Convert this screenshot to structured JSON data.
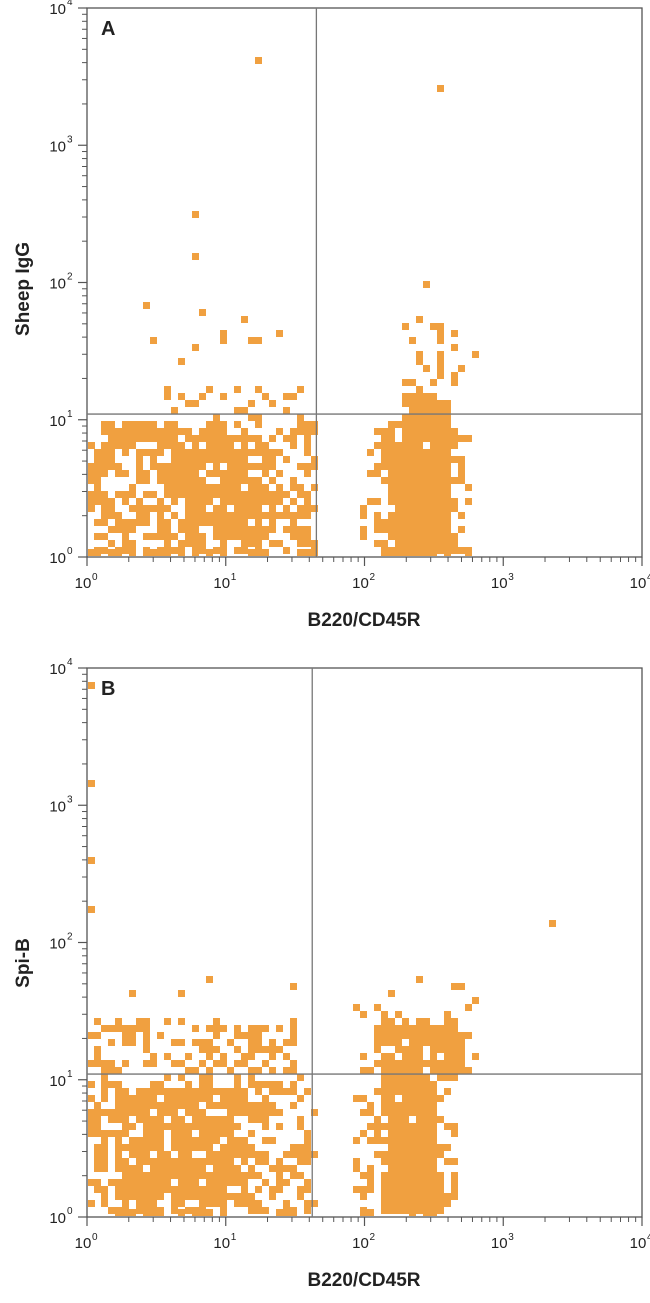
{
  "colors": {
    "dot": "#F0A040",
    "axis": "#555555",
    "gate": "#777777",
    "text": "#222222"
  },
  "chart_data": [
    {
      "type": "scatter",
      "panel": "A",
      "xlabel": "B220/CD45R",
      "ylabel": "Sheep IgG",
      "xscale": "log",
      "yscale": "log",
      "xlim": [
        1,
        10000
      ],
      "ylim": [
        1,
        10000
      ],
      "x_ticks": [
        {
          "base": "10",
          "exp": "0"
        },
        {
          "base": "10",
          "exp": "1"
        },
        {
          "base": "10",
          "exp": "2"
        },
        {
          "base": "10",
          "exp": "3"
        },
        {
          "base": "10",
          "exp": "4"
        }
      ],
      "y_ticks": [
        {
          "base": "10",
          "exp": "0"
        },
        {
          "base": "10",
          "exp": "1"
        },
        {
          "base": "10",
          "exp": "2"
        },
        {
          "base": "10",
          "exp": "3"
        },
        {
          "base": "10",
          "exp": "4"
        }
      ],
      "quadrant_gate": {
        "x": 45,
        "y": 11
      },
      "populations": [
        {
          "x_range": [
            1,
            40
          ],
          "y_range": [
            1,
            10
          ],
          "count": 520
        },
        {
          "x_range": [
            3,
            22
          ],
          "y_range": [
            1.5,
            9
          ],
          "count": 260
        },
        {
          "x_range": [
            150,
            380
          ],
          "y_range": [
            1,
            10
          ],
          "count": 460
        },
        {
          "x_range": [
            90,
            560
          ],
          "y_range": [
            1,
            9
          ],
          "count": 170
        },
        {
          "x_range": [
            190,
            400
          ],
          "y_range": [
            10,
            16
          ],
          "count": 70
        },
        {
          "x_range": [
            3,
            40
          ],
          "y_range": [
            11,
            18
          ],
          "count": 28
        },
        {
          "x_range": [
            180,
            500
          ],
          "y_range": [
            16,
            60
          ],
          "count": 30
        }
      ],
      "points": [
        [
          16.5,
          4400
        ],
        [
          320,
          2800
        ],
        [
          5.5,
          330
        ],
        [
          5.5,
          160
        ],
        [
          2.5,
          72
        ],
        [
          6.5,
          65
        ],
        [
          13,
          60
        ],
        [
          9.5,
          45
        ],
        [
          9.5,
          42
        ],
        [
          2.8,
          42
        ],
        [
          15,
          40
        ],
        [
          16,
          38
        ],
        [
          22,
          46
        ],
        [
          5.5,
          36
        ],
        [
          260,
          100
        ],
        [
          240,
          60
        ],
        [
          620,
          33
        ],
        [
          4.5,
          27
        ]
      ]
    },
    {
      "type": "scatter",
      "panel": "B",
      "xlabel": "B220/CD45R",
      "ylabel": "Spi-B",
      "xscale": "log",
      "yscale": "log",
      "xlim": [
        1,
        10000
      ],
      "ylim": [
        1,
        10000
      ],
      "x_ticks": [
        {
          "base": "10",
          "exp": "0"
        },
        {
          "base": "10",
          "exp": "1"
        },
        {
          "base": "10",
          "exp": "2"
        },
        {
          "base": "10",
          "exp": "3"
        },
        {
          "base": "10",
          "exp": "4"
        }
      ],
      "y_ticks": [
        {
          "base": "10",
          "exp": "0"
        },
        {
          "base": "10",
          "exp": "1"
        },
        {
          "base": "10",
          "exp": "2"
        },
        {
          "base": "10",
          "exp": "3"
        },
        {
          "base": "10",
          "exp": "4"
        }
      ],
      "quadrant_gate": {
        "x": 42,
        "y": 11
      },
      "populations": [
        {
          "x_range": [
            1,
            40
          ],
          "y_range": [
            1,
            10
          ],
          "count": 500
        },
        {
          "x_range": [
            1.5,
            14
          ],
          "y_range": [
            1.5,
            9
          ],
          "count": 320
        },
        {
          "x_range": [
            1,
            35
          ],
          "y_range": [
            11,
            28
          ],
          "count": 150
        },
        {
          "x_range": [
            130,
            320
          ],
          "y_range": [
            1.2,
            10
          ],
          "count": 380
        },
        {
          "x_range": [
            80,
            450
          ],
          "y_range": [
            1,
            9
          ],
          "count": 120
        },
        {
          "x_range": [
            120,
            450
          ],
          "y_range": [
            11,
            28
          ],
          "count": 220
        },
        {
          "x_range": [
            80,
            620
          ],
          "y_range": [
            11,
            50
          ],
          "count": 40
        }
      ],
      "points": [
        [
          2100,
          150
        ],
        [
          7,
          58
        ],
        [
          1.05,
          8000
        ],
        [
          1.05,
          1500
        ],
        [
          1.05,
          400
        ],
        [
          1.05,
          180
        ],
        [
          230,
          58
        ],
        [
          30,
          52
        ],
        [
          2,
          45
        ],
        [
          4.5,
          45
        ]
      ]
    }
  ]
}
